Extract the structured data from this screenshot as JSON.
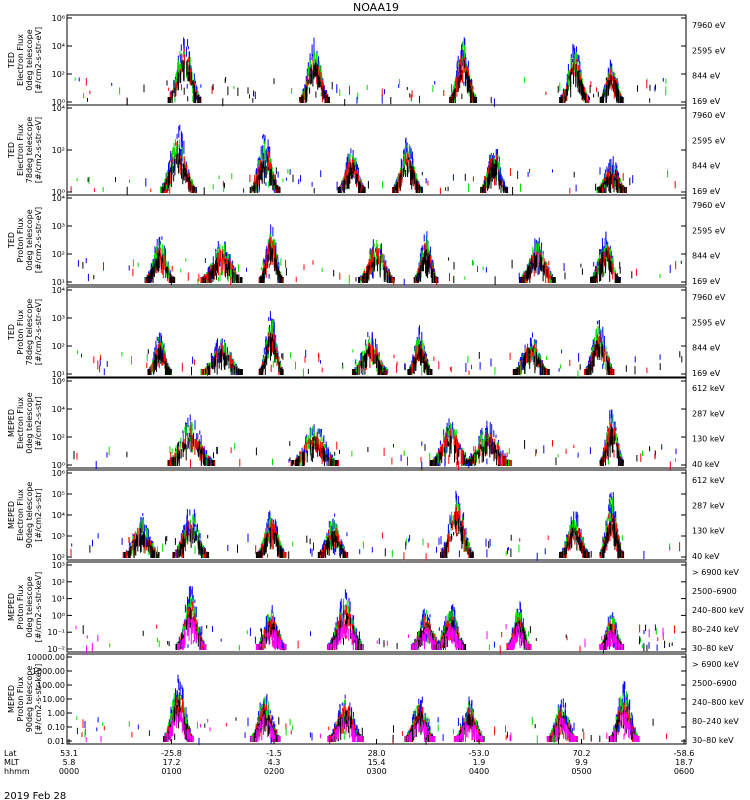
{
  "title": "NOAA19",
  "date_label": "2019 Feb 28",
  "colors": {
    "red": "#ff0000",
    "green": "#00dd00",
    "blue": "#0000ff",
    "black": "#000000",
    "magenta": "#ff00ff"
  },
  "chart_data": [
    {
      "type": "scatter",
      "ylabel": [
        "TED",
        "Electron Flux",
        "0deg telescope",
        "[#/cm2-s-str-eV]"
      ],
      "y_ticks": [
        "10⁶",
        "10⁴",
        "10²",
        "10⁰"
      ],
      "legend": [
        {
          "label": "7960 eV",
          "color": "#000000"
        },
        {
          "label": "2595 eV",
          "color": "#ff0000"
        },
        {
          "label": "844 eV",
          "color": "#00dd00"
        },
        {
          "label": "169 eV",
          "color": "#0000ff"
        }
      ],
      "series_color_order": [
        "#0000ff",
        "#00dd00",
        "#ff0000",
        "#000000"
      ],
      "bursts": [
        [
          0.19,
          0.9,
          0.55
        ],
        [
          0.4,
          0.8,
          0.5
        ],
        [
          0.64,
          0.85,
          0.45
        ],
        [
          0.82,
          0.75,
          0.5
        ],
        [
          0.88,
          0.55,
          0.4
        ]
      ]
    },
    {
      "type": "scatter",
      "ylabel": [
        "TED",
        "Electron Flux",
        "78deg telescope",
        "[#/cm2-s-str-eV]"
      ],
      "y_ticks": [
        "10⁴",
        "10²",
        "10⁰"
      ],
      "legend": [
        {
          "label": "7960 eV",
          "color": "#000000"
        },
        {
          "label": "2595 eV",
          "color": "#ff0000"
        },
        {
          "label": "844 eV",
          "color": "#00dd00"
        },
        {
          "label": "169 eV",
          "color": "#0000ff"
        }
      ],
      "series_color_order": [
        "#0000ff",
        "#00dd00",
        "#ff0000",
        "#000000"
      ],
      "bursts": [
        [
          0.18,
          0.85,
          0.6
        ],
        [
          0.32,
          0.75,
          0.5
        ],
        [
          0.46,
          0.6,
          0.45
        ],
        [
          0.55,
          0.7,
          0.5
        ],
        [
          0.69,
          0.65,
          0.45
        ],
        [
          0.88,
          0.45,
          0.5
        ]
      ]
    },
    {
      "type": "scatter",
      "ylabel": [
        "TED",
        "Proton Flux",
        "0deg telescope",
        "[#/cm2-s-str-eV]"
      ],
      "y_ticks": [
        "10⁴",
        "10³",
        "10²",
        "10¹"
      ],
      "legend": [
        {
          "label": "7960 eV",
          "color": "#000000"
        },
        {
          "label": "2595 eV",
          "color": "#ff0000"
        },
        {
          "label": "844 eV",
          "color": "#00dd00"
        },
        {
          "label": "169 eV",
          "color": "#0000ff"
        }
      ],
      "series_color_order": [
        "#0000ff",
        "#00dd00",
        "#ff0000",
        "#000000"
      ],
      "bursts": [
        [
          0.15,
          0.6,
          0.5
        ],
        [
          0.25,
          0.55,
          0.7
        ],
        [
          0.33,
          0.75,
          0.4
        ],
        [
          0.5,
          0.6,
          0.6
        ],
        [
          0.58,
          0.65,
          0.4
        ],
        [
          0.76,
          0.6,
          0.6
        ],
        [
          0.87,
          0.65,
          0.5
        ]
      ]
    },
    {
      "type": "scatter",
      "ylabel": [
        "TED",
        "Proton Flux",
        "78deg telescope",
        "[#/cm2-s-str-eV]"
      ],
      "y_ticks": [
        "10⁴",
        "10³",
        "10²",
        "10¹"
      ],
      "legend": [
        {
          "label": "7960 eV",
          "color": "#000000"
        },
        {
          "label": "2595 eV",
          "color": "#ff0000"
        },
        {
          "label": "844 eV",
          "color": "#00dd00"
        },
        {
          "label": "169 eV",
          "color": "#0000ff"
        }
      ],
      "series_color_order": [
        "#0000ff",
        "#00dd00",
        "#ff0000",
        "#000000"
      ],
      "bursts": [
        [
          0.15,
          0.55,
          0.4
        ],
        [
          0.25,
          0.5,
          0.7
        ],
        [
          0.33,
          0.8,
          0.4
        ],
        [
          0.49,
          0.55,
          0.6
        ],
        [
          0.57,
          0.6,
          0.4
        ],
        [
          0.75,
          0.55,
          0.6
        ],
        [
          0.86,
          0.7,
          0.5
        ]
      ]
    },
    {
      "type": "scatter",
      "ylabel": [
        "MEPED",
        "Electron Flux",
        "0deg telescope",
        "[#/cm2-s-str]"
      ],
      "y_ticks": [
        "10⁶",
        "10⁴",
        "10²",
        "10⁰"
      ],
      "legend": [
        {
          "label": "612 keV",
          "color": "#000000"
        },
        {
          "label": "287 keV",
          "color": "#ff0000"
        },
        {
          "label": "130 keV",
          "color": "#00dd00"
        },
        {
          "label": "40 keV",
          "color": "#0000ff"
        }
      ],
      "series_color_order": [
        "#0000ff",
        "#00dd00",
        "#ff0000",
        "#000000"
      ],
      "bursts": [
        [
          0.2,
          0.65,
          0.8
        ],
        [
          0.4,
          0.55,
          0.8
        ],
        [
          0.62,
          0.6,
          0.7
        ],
        [
          0.68,
          0.55,
          0.8
        ],
        [
          0.88,
          0.75,
          0.4
        ]
      ]
    },
    {
      "type": "scatter",
      "ylabel": [
        "MEPED",
        "Electron Flux",
        "90deg telescope",
        "[#/cm2-s-str]"
      ],
      "y_ticks": [
        "10⁶",
        "10⁵",
        "10⁴",
        "10³",
        "10²"
      ],
      "legend": [
        {
          "label": "612 keV",
          "color": "#000000"
        },
        {
          "label": "287 keV",
          "color": "#ff0000"
        },
        {
          "label": "130 keV",
          "color": "#00dd00"
        },
        {
          "label": "40 keV",
          "color": "#0000ff"
        }
      ],
      "series_color_order": [
        "#0000ff",
        "#00dd00",
        "#ff0000",
        "#000000"
      ],
      "bursts": [
        [
          0.12,
          0.55,
          0.6
        ],
        [
          0.2,
          0.65,
          0.6
        ],
        [
          0.33,
          0.6,
          0.5
        ],
        [
          0.43,
          0.55,
          0.5
        ],
        [
          0.63,
          0.85,
          0.55
        ],
        [
          0.82,
          0.6,
          0.5
        ],
        [
          0.88,
          0.85,
          0.4
        ]
      ]
    },
    {
      "type": "scatter",
      "ylabel": [
        "MEPED",
        "Proton Flux",
        "0deg telescope",
        "[#/cm2-s-str-keV]"
      ],
      "y_ticks": [
        "10³",
        "10²",
        "10¹",
        "10⁰",
        "10⁻¹",
        "10⁻²"
      ],
      "legend": [
        {
          "label": "> 6900 keV",
          "color": "#ff00ff"
        },
        {
          "label": "2500–6900",
          "color": "#000000"
        },
        {
          "label": "240–800 keV",
          "color": "#ff0000"
        },
        {
          "label": "80–240 keV",
          "color": "#00dd00"
        },
        {
          "label": "30–80 keV",
          "color": "#0000ff"
        }
      ],
      "series_color_order": [
        "#0000ff",
        "#00dd00",
        "#ff0000",
        "#000000",
        "#ff00ff"
      ],
      "bursts": [
        [
          0.2,
          0.8,
          0.5
        ],
        [
          0.33,
          0.55,
          0.5
        ],
        [
          0.45,
          0.75,
          0.6
        ],
        [
          0.58,
          0.55,
          0.5
        ],
        [
          0.62,
          0.6,
          0.5
        ],
        [
          0.73,
          0.6,
          0.4
        ],
        [
          0.88,
          0.5,
          0.4
        ]
      ]
    },
    {
      "type": "scatter",
      "ylabel": [
        "MEPED",
        "Proton Flux",
        "90deg telescope",
        "[#/cm2-s-str-keV]"
      ],
      "y_ticks": [
        "10000.00",
        "1000.00",
        "100.00",
        "10.00",
        "1.00",
        "0.10",
        "0.01"
      ],
      "legend": [
        {
          "label": "> 6900 keV",
          "color": "#ff00ff"
        },
        {
          "label": "2500–6900",
          "color": "#000000"
        },
        {
          "label": "240–800 keV",
          "color": "#ff0000"
        },
        {
          "label": "80–240 keV",
          "color": "#00dd00"
        },
        {
          "label": "30–80 keV",
          "color": "#0000ff"
        }
      ],
      "series_color_order": [
        "#0000ff",
        "#00dd00",
        "#ff0000",
        "#000000",
        "#ff00ff"
      ],
      "bursts": [
        [
          0.18,
          0.85,
          0.5
        ],
        [
          0.32,
          0.65,
          0.5
        ],
        [
          0.45,
          0.6,
          0.6
        ],
        [
          0.57,
          0.6,
          0.5
        ],
        [
          0.65,
          0.55,
          0.5
        ],
        [
          0.8,
          0.55,
          0.5
        ],
        [
          0.9,
          0.75,
          0.5
        ]
      ]
    }
  ],
  "x_axis": {
    "row_labels": [
      "Lat",
      "MLT",
      "hhmm"
    ],
    "ticks": [
      {
        "lat": "53.1",
        "mlt": "5.8",
        "hhmm": "0000"
      },
      {
        "lat": "-25.8",
        "mlt": "17.2",
        "hhmm": "0100"
      },
      {
        "lat": "-1.5",
        "mlt": "4.3",
        "hhmm": "0200"
      },
      {
        "lat": "28.0",
        "mlt": "15.4",
        "hhmm": "0300"
      },
      {
        "lat": "-53.0",
        "mlt": "1.9",
        "hhmm": "0400"
      },
      {
        "lat": "70.2",
        "mlt": "9.9",
        "hhmm": "0500"
      },
      {
        "lat": "-58.6",
        "mlt": "18.7",
        "hhmm": "0600"
      }
    ]
  }
}
